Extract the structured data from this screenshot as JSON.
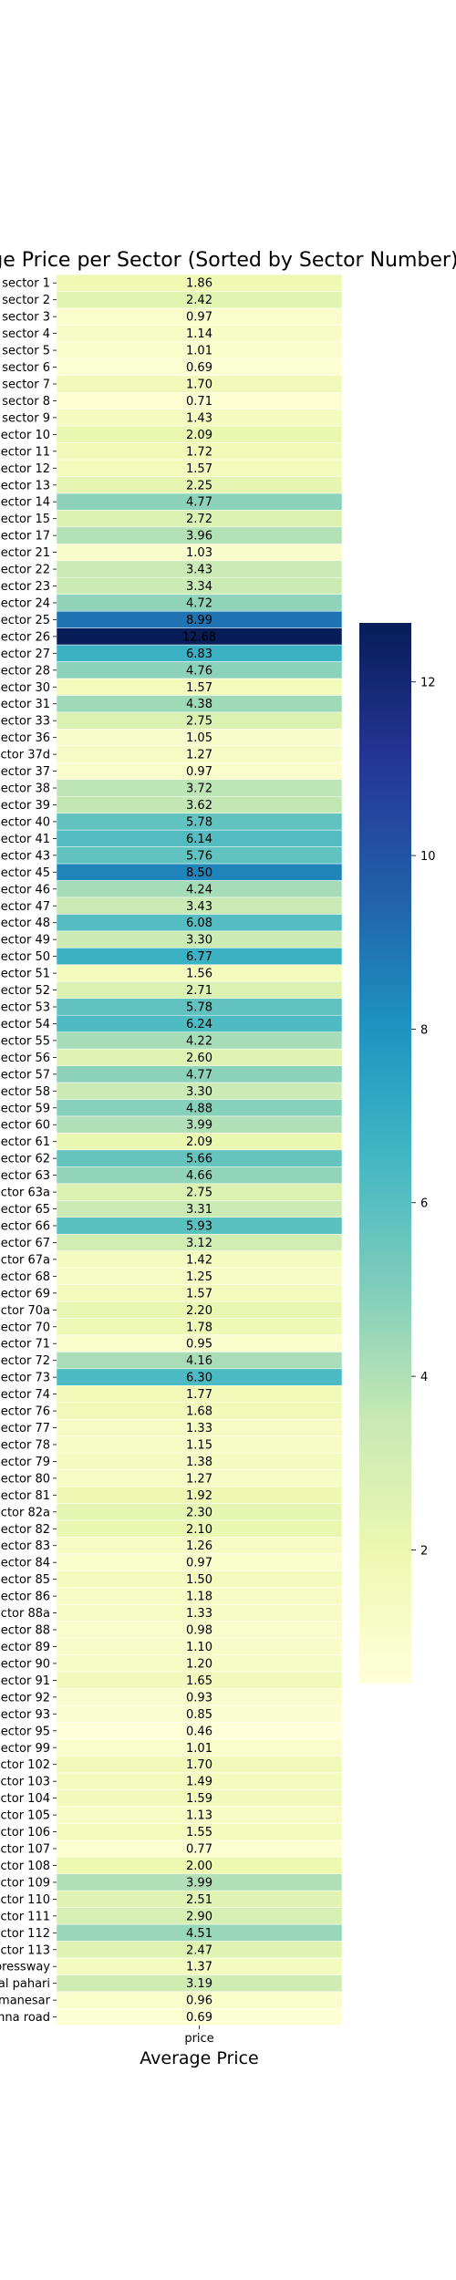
{
  "chart_data": {
    "type": "heatmap",
    "title": "Average Price per Sector (Sorted by Sector Number)",
    "xlabel": "Average Price",
    "ylabel": "",
    "column": "price",
    "colormap": "YlGnBu",
    "value_range": [
      0.46,
      12.68
    ],
    "colorbar_ticks": [
      2,
      4,
      6,
      8,
      10,
      12
    ],
    "rows": [
      {
        "sector": "sector 1",
        "price": 1.86
      },
      {
        "sector": "sector 2",
        "price": 2.42
      },
      {
        "sector": "sector 3",
        "price": 0.97
      },
      {
        "sector": "sector 4",
        "price": 1.14
      },
      {
        "sector": "sector 5",
        "price": 1.01
      },
      {
        "sector": "sector 6",
        "price": 0.69
      },
      {
        "sector": "sector 7",
        "price": 1.7
      },
      {
        "sector": "sector 8",
        "price": 0.71
      },
      {
        "sector": "sector 9",
        "price": 1.43
      },
      {
        "sector": "sector 10",
        "price": 2.09
      },
      {
        "sector": "sector 11",
        "price": 1.72
      },
      {
        "sector": "sector 12",
        "price": 1.57
      },
      {
        "sector": "sector 13",
        "price": 2.25
      },
      {
        "sector": "sector 14",
        "price": 4.77
      },
      {
        "sector": "sector 15",
        "price": 2.72
      },
      {
        "sector": "sector 17",
        "price": 3.96
      },
      {
        "sector": "sector 21",
        "price": 1.03
      },
      {
        "sector": "sector 22",
        "price": 3.43
      },
      {
        "sector": "sector 23",
        "price": 3.34
      },
      {
        "sector": "sector 24",
        "price": 4.72
      },
      {
        "sector": "sector 25",
        "price": 8.99
      },
      {
        "sector": "sector 26",
        "price": 12.68
      },
      {
        "sector": "sector 27",
        "price": 6.83
      },
      {
        "sector": "sector 28",
        "price": 4.76
      },
      {
        "sector": "sector 30",
        "price": 1.57
      },
      {
        "sector": "sector 31",
        "price": 4.38
      },
      {
        "sector": "sector 33",
        "price": 2.75
      },
      {
        "sector": "sector 36",
        "price": 1.05
      },
      {
        "sector": "sector 37d",
        "price": 1.27
      },
      {
        "sector": "sector 37",
        "price": 0.97
      },
      {
        "sector": "sector 38",
        "price": 3.72
      },
      {
        "sector": "sector 39",
        "price": 3.62
      },
      {
        "sector": "sector 40",
        "price": 5.78
      },
      {
        "sector": "sector 41",
        "price": 6.14
      },
      {
        "sector": "sector 43",
        "price": 5.76
      },
      {
        "sector": "sector 45",
        "price": 8.5
      },
      {
        "sector": "sector 46",
        "price": 4.24
      },
      {
        "sector": "sector 47",
        "price": 3.43
      },
      {
        "sector": "sector 48",
        "price": 6.08
      },
      {
        "sector": "sector 49",
        "price": 3.3
      },
      {
        "sector": "sector 50",
        "price": 6.77
      },
      {
        "sector": "sector 51",
        "price": 1.56
      },
      {
        "sector": "sector 52",
        "price": 2.71
      },
      {
        "sector": "sector 53",
        "price": 5.78
      },
      {
        "sector": "sector 54",
        "price": 6.24
      },
      {
        "sector": "sector 55",
        "price": 4.22
      },
      {
        "sector": "sector 56",
        "price": 2.6
      },
      {
        "sector": "sector 57",
        "price": 4.77
      },
      {
        "sector": "sector 58",
        "price": 3.3
      },
      {
        "sector": "sector 59",
        "price": 4.88
      },
      {
        "sector": "sector 60",
        "price": 3.99
      },
      {
        "sector": "sector 61",
        "price": 2.09
      },
      {
        "sector": "sector 62",
        "price": 5.66
      },
      {
        "sector": "sector 63",
        "price": 4.66
      },
      {
        "sector": "sector 63a",
        "price": 2.75
      },
      {
        "sector": "sector 65",
        "price": 3.31
      },
      {
        "sector": "sector 66",
        "price": 5.93
      },
      {
        "sector": "sector 67",
        "price": 3.12
      },
      {
        "sector": "sector 67a",
        "price": 1.42
      },
      {
        "sector": "sector 68",
        "price": 1.25
      },
      {
        "sector": "sector 69",
        "price": 1.57
      },
      {
        "sector": "sector 70a",
        "price": 2.2
      },
      {
        "sector": "sector 70",
        "price": 1.78
      },
      {
        "sector": "sector 71",
        "price": 0.95
      },
      {
        "sector": "sector 72",
        "price": 4.16
      },
      {
        "sector": "sector 73",
        "price": 6.3
      },
      {
        "sector": "sector 74",
        "price": 1.77
      },
      {
        "sector": "sector 76",
        "price": 1.68
      },
      {
        "sector": "sector 77",
        "price": 1.33
      },
      {
        "sector": "sector 78",
        "price": 1.15
      },
      {
        "sector": "sector 79",
        "price": 1.38
      },
      {
        "sector": "sector 80",
        "price": 1.27
      },
      {
        "sector": "sector 81",
        "price": 1.92
      },
      {
        "sector": "sector 82a",
        "price": 2.3
      },
      {
        "sector": "sector 82",
        "price": 2.1
      },
      {
        "sector": "sector 83",
        "price": 1.26
      },
      {
        "sector": "sector 84",
        "price": 0.97
      },
      {
        "sector": "sector 85",
        "price": 1.5
      },
      {
        "sector": "sector 86",
        "price": 1.18
      },
      {
        "sector": "sector 88a",
        "price": 1.33
      },
      {
        "sector": "sector 88",
        "price": 0.98
      },
      {
        "sector": "sector 89",
        "price": 1.1
      },
      {
        "sector": "sector 90",
        "price": 1.2
      },
      {
        "sector": "sector 91",
        "price": 1.65
      },
      {
        "sector": "sector 92",
        "price": 0.93
      },
      {
        "sector": "sector 93",
        "price": 0.85
      },
      {
        "sector": "sector 95",
        "price": 0.46
      },
      {
        "sector": "sector 99",
        "price": 1.01
      },
      {
        "sector": "sector 102",
        "price": 1.7
      },
      {
        "sector": "sector 103",
        "price": 1.49
      },
      {
        "sector": "sector 104",
        "price": 1.59
      },
      {
        "sector": "sector 105",
        "price": 1.13
      },
      {
        "sector": "sector 106",
        "price": 1.55
      },
      {
        "sector": "sector 107",
        "price": 0.77
      },
      {
        "sector": "sector 108",
        "price": 2.0
      },
      {
        "sector": "sector 109",
        "price": 3.99
      },
      {
        "sector": "sector 110",
        "price": 2.51
      },
      {
        "sector": "sector 111",
        "price": 2.9
      },
      {
        "sector": "sector 112",
        "price": 4.51
      },
      {
        "sector": "sector 113",
        "price": 2.47
      },
      {
        "sector": "dwarka expressway",
        "price": 1.37
      },
      {
        "sector": "gwal pahari",
        "price": 3.19
      },
      {
        "sector": "manesar",
        "price": 0.96
      },
      {
        "sector": "sohna road",
        "price": 0.69
      }
    ]
  }
}
